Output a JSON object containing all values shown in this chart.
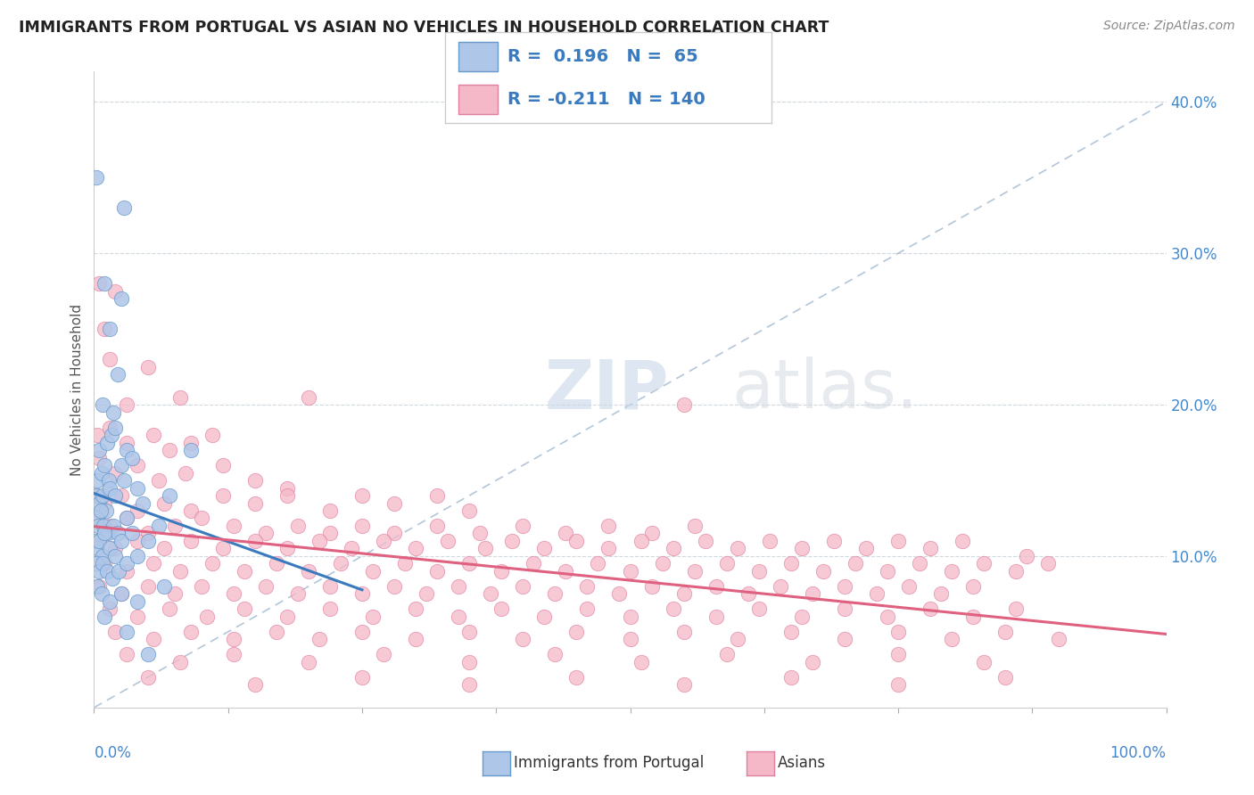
{
  "title": "IMMIGRANTS FROM PORTUGAL VS ASIAN NO VEHICLES IN HOUSEHOLD CORRELATION CHART",
  "source": "Source: ZipAtlas.com",
  "ylabel": "No Vehicles in Household",
  "xlim": [
    0.0,
    100.0
  ],
  "ylim": [
    0.0,
    42.0
  ],
  "blue_R": 0.196,
  "blue_N": 65,
  "pink_R": -0.211,
  "pink_N": 140,
  "blue_color": "#aec6e8",
  "pink_color": "#f5b8c8",
  "blue_line_color": "#3a7abf",
  "pink_line_color": "#e06080",
  "blue_edge_color": "#6699cc",
  "pink_edge_color": "#e080a0",
  "watermark_zip": "ZIP",
  "watermark_atlas": "atlas.",
  "background_color": "#ffffff",
  "blue_scatter": [
    [
      0.2,
      35.0
    ],
    [
      1.0,
      28.0
    ],
    [
      2.8,
      33.0
    ],
    [
      1.5,
      25.0
    ],
    [
      2.5,
      27.0
    ],
    [
      0.8,
      20.0
    ],
    [
      1.8,
      19.5
    ],
    [
      2.2,
      22.0
    ],
    [
      0.5,
      17.0
    ],
    [
      1.2,
      17.5
    ],
    [
      1.6,
      18.0
    ],
    [
      2.0,
      18.5
    ],
    [
      0.3,
      15.0
    ],
    [
      0.7,
      15.5
    ],
    [
      1.0,
      16.0
    ],
    [
      1.4,
      15.0
    ],
    [
      2.5,
      16.0
    ],
    [
      3.0,
      17.0
    ],
    [
      0.2,
      14.0
    ],
    [
      0.5,
      13.5
    ],
    [
      0.8,
      14.0
    ],
    [
      1.1,
      13.0
    ],
    [
      1.5,
      14.5
    ],
    [
      2.0,
      14.0
    ],
    [
      2.8,
      15.0
    ],
    [
      3.5,
      16.5
    ],
    [
      0.2,
      12.5
    ],
    [
      0.4,
      12.0
    ],
    [
      0.6,
      13.0
    ],
    [
      0.9,
      12.0
    ],
    [
      1.3,
      11.5
    ],
    [
      1.8,
      12.0
    ],
    [
      2.2,
      11.5
    ],
    [
      3.0,
      12.5
    ],
    [
      4.0,
      14.5
    ],
    [
      0.1,
      11.0
    ],
    [
      0.3,
      10.5
    ],
    [
      0.5,
      11.0
    ],
    [
      0.8,
      10.0
    ],
    [
      1.0,
      11.5
    ],
    [
      1.5,
      10.5
    ],
    [
      2.0,
      10.0
    ],
    [
      2.5,
      11.0
    ],
    [
      3.5,
      11.5
    ],
    [
      4.5,
      13.5
    ],
    [
      0.2,
      9.5
    ],
    [
      0.5,
      9.0
    ],
    [
      0.8,
      9.5
    ],
    [
      1.2,
      9.0
    ],
    [
      1.7,
      8.5
    ],
    [
      2.3,
      9.0
    ],
    [
      3.0,
      9.5
    ],
    [
      4.0,
      10.0
    ],
    [
      5.0,
      11.0
    ],
    [
      6.0,
      12.0
    ],
    [
      7.0,
      14.0
    ],
    [
      9.0,
      17.0
    ],
    [
      0.3,
      8.0
    ],
    [
      0.7,
      7.5
    ],
    [
      1.5,
      7.0
    ],
    [
      2.5,
      7.5
    ],
    [
      4.0,
      7.0
    ],
    [
      6.5,
      8.0
    ],
    [
      1.0,
      6.0
    ],
    [
      3.0,
      5.0
    ],
    [
      5.0,
      3.5
    ]
  ],
  "pink_scatter": [
    [
      0.5,
      28.0
    ],
    [
      1.0,
      25.0
    ],
    [
      2.0,
      27.5
    ],
    [
      1.5,
      23.0
    ],
    [
      3.0,
      20.0
    ],
    [
      5.0,
      22.5
    ],
    [
      8.0,
      20.5
    ],
    [
      0.3,
      18.0
    ],
    [
      1.5,
      18.5
    ],
    [
      3.0,
      17.5
    ],
    [
      5.5,
      18.0
    ],
    [
      7.0,
      17.0
    ],
    [
      9.0,
      17.5
    ],
    [
      11.0,
      18.0
    ],
    [
      0.5,
      16.5
    ],
    [
      2.0,
      15.5
    ],
    [
      4.0,
      16.0
    ],
    [
      6.0,
      15.0
    ],
    [
      8.5,
      15.5
    ],
    [
      12.0,
      16.0
    ],
    [
      15.0,
      15.0
    ],
    [
      18.0,
      14.5
    ],
    [
      20.0,
      20.5
    ],
    [
      0.2,
      14.0
    ],
    [
      1.0,
      13.5
    ],
    [
      2.5,
      14.0
    ],
    [
      4.0,
      13.0
    ],
    [
      6.5,
      13.5
    ],
    [
      9.0,
      13.0
    ],
    [
      12.0,
      14.0
    ],
    [
      15.0,
      13.5
    ],
    [
      18.0,
      14.0
    ],
    [
      22.0,
      13.0
    ],
    [
      25.0,
      14.0
    ],
    [
      28.0,
      13.5
    ],
    [
      32.0,
      14.0
    ],
    [
      35.0,
      13.0
    ],
    [
      55.0,
      20.0
    ],
    [
      0.3,
      12.5
    ],
    [
      1.5,
      12.0
    ],
    [
      3.0,
      12.5
    ],
    [
      5.0,
      11.5
    ],
    [
      7.5,
      12.0
    ],
    [
      10.0,
      12.5
    ],
    [
      13.0,
      12.0
    ],
    [
      16.0,
      11.5
    ],
    [
      19.0,
      12.0
    ],
    [
      22.0,
      11.5
    ],
    [
      25.0,
      12.0
    ],
    [
      28.0,
      11.5
    ],
    [
      32.0,
      12.0
    ],
    [
      36.0,
      11.5
    ],
    [
      40.0,
      12.0
    ],
    [
      44.0,
      11.5
    ],
    [
      48.0,
      12.0
    ],
    [
      52.0,
      11.5
    ],
    [
      56.0,
      12.0
    ],
    [
      0.5,
      11.0
    ],
    [
      2.0,
      10.5
    ],
    [
      4.0,
      11.0
    ],
    [
      6.5,
      10.5
    ],
    [
      9.0,
      11.0
    ],
    [
      12.0,
      10.5
    ],
    [
      15.0,
      11.0
    ],
    [
      18.0,
      10.5
    ],
    [
      21.0,
      11.0
    ],
    [
      24.0,
      10.5
    ],
    [
      27.0,
      11.0
    ],
    [
      30.0,
      10.5
    ],
    [
      33.0,
      11.0
    ],
    [
      36.5,
      10.5
    ],
    [
      39.0,
      11.0
    ],
    [
      42.0,
      10.5
    ],
    [
      45.0,
      11.0
    ],
    [
      48.0,
      10.5
    ],
    [
      51.0,
      11.0
    ],
    [
      54.0,
      10.5
    ],
    [
      57.0,
      11.0
    ],
    [
      60.0,
      10.5
    ],
    [
      63.0,
      11.0
    ],
    [
      66.0,
      10.5
    ],
    [
      69.0,
      11.0
    ],
    [
      72.0,
      10.5
    ],
    [
      75.0,
      11.0
    ],
    [
      78.0,
      10.5
    ],
    [
      81.0,
      11.0
    ],
    [
      87.0,
      10.0
    ],
    [
      1.0,
      9.5
    ],
    [
      3.0,
      9.0
    ],
    [
      5.5,
      9.5
    ],
    [
      8.0,
      9.0
    ],
    [
      11.0,
      9.5
    ],
    [
      14.0,
      9.0
    ],
    [
      17.0,
      9.5
    ],
    [
      20.0,
      9.0
    ],
    [
      23.0,
      9.5
    ],
    [
      26.0,
      9.0
    ],
    [
      29.0,
      9.5
    ],
    [
      32.0,
      9.0
    ],
    [
      35.0,
      9.5
    ],
    [
      38.0,
      9.0
    ],
    [
      41.0,
      9.5
    ],
    [
      44.0,
      9.0
    ],
    [
      47.0,
      9.5
    ],
    [
      50.0,
      9.0
    ],
    [
      53.0,
      9.5
    ],
    [
      56.0,
      9.0
    ],
    [
      59.0,
      9.5
    ],
    [
      62.0,
      9.0
    ],
    [
      65.0,
      9.5
    ],
    [
      68.0,
      9.0
    ],
    [
      71.0,
      9.5
    ],
    [
      74.0,
      9.0
    ],
    [
      77.0,
      9.5
    ],
    [
      80.0,
      9.0
    ],
    [
      83.0,
      9.5
    ],
    [
      86.0,
      9.0
    ],
    [
      89.0,
      9.5
    ],
    [
      0.5,
      8.0
    ],
    [
      2.5,
      7.5
    ],
    [
      5.0,
      8.0
    ],
    [
      7.5,
      7.5
    ],
    [
      10.0,
      8.0
    ],
    [
      13.0,
      7.5
    ],
    [
      16.0,
      8.0
    ],
    [
      19.0,
      7.5
    ],
    [
      22.0,
      8.0
    ],
    [
      25.0,
      7.5
    ],
    [
      28.0,
      8.0
    ],
    [
      31.0,
      7.5
    ],
    [
      34.0,
      8.0
    ],
    [
      37.0,
      7.5
    ],
    [
      40.0,
      8.0
    ],
    [
      43.0,
      7.5
    ],
    [
      46.0,
      8.0
    ],
    [
      49.0,
      7.5
    ],
    [
      52.0,
      8.0
    ],
    [
      55.0,
      7.5
    ],
    [
      58.0,
      8.0
    ],
    [
      61.0,
      7.5
    ],
    [
      64.0,
      8.0
    ],
    [
      67.0,
      7.5
    ],
    [
      70.0,
      8.0
    ],
    [
      73.0,
      7.5
    ],
    [
      76.0,
      8.0
    ],
    [
      79.0,
      7.5
    ],
    [
      82.0,
      8.0
    ],
    [
      1.5,
      6.5
    ],
    [
      4.0,
      6.0
    ],
    [
      7.0,
      6.5
    ],
    [
      10.5,
      6.0
    ],
    [
      14.0,
      6.5
    ],
    [
      18.0,
      6.0
    ],
    [
      22.0,
      6.5
    ],
    [
      26.0,
      6.0
    ],
    [
      30.0,
      6.5
    ],
    [
      34.0,
      6.0
    ],
    [
      38.0,
      6.5
    ],
    [
      42.0,
      6.0
    ],
    [
      46.0,
      6.5
    ],
    [
      50.0,
      6.0
    ],
    [
      54.0,
      6.5
    ],
    [
      58.0,
      6.0
    ],
    [
      62.0,
      6.5
    ],
    [
      66.0,
      6.0
    ],
    [
      70.0,
      6.5
    ],
    [
      74.0,
      6.0
    ],
    [
      78.0,
      6.5
    ],
    [
      82.0,
      6.0
    ],
    [
      86.0,
      6.5
    ],
    [
      2.0,
      5.0
    ],
    [
      5.5,
      4.5
    ],
    [
      9.0,
      5.0
    ],
    [
      13.0,
      4.5
    ],
    [
      17.0,
      5.0
    ],
    [
      21.0,
      4.5
    ],
    [
      25.0,
      5.0
    ],
    [
      30.0,
      4.5
    ],
    [
      35.0,
      5.0
    ],
    [
      40.0,
      4.5
    ],
    [
      45.0,
      5.0
    ],
    [
      50.0,
      4.5
    ],
    [
      55.0,
      5.0
    ],
    [
      60.0,
      4.5
    ],
    [
      65.0,
      5.0
    ],
    [
      70.0,
      4.5
    ],
    [
      75.0,
      5.0
    ],
    [
      80.0,
      4.5
    ],
    [
      85.0,
      5.0
    ],
    [
      90.0,
      4.5
    ],
    [
      3.0,
      3.5
    ],
    [
      8.0,
      3.0
    ],
    [
      13.0,
      3.5
    ],
    [
      20.0,
      3.0
    ],
    [
      27.0,
      3.5
    ],
    [
      35.0,
      3.0
    ],
    [
      43.0,
      3.5
    ],
    [
      51.0,
      3.0
    ],
    [
      59.0,
      3.5
    ],
    [
      67.0,
      3.0
    ],
    [
      75.0,
      3.5
    ],
    [
      83.0,
      3.0
    ],
    [
      5.0,
      2.0
    ],
    [
      15.0,
      1.5
    ],
    [
      25.0,
      2.0
    ],
    [
      35.0,
      1.5
    ],
    [
      45.0,
      2.0
    ],
    [
      55.0,
      1.5
    ],
    [
      65.0,
      2.0
    ],
    [
      75.0,
      1.5
    ],
    [
      85.0,
      2.0
    ]
  ]
}
